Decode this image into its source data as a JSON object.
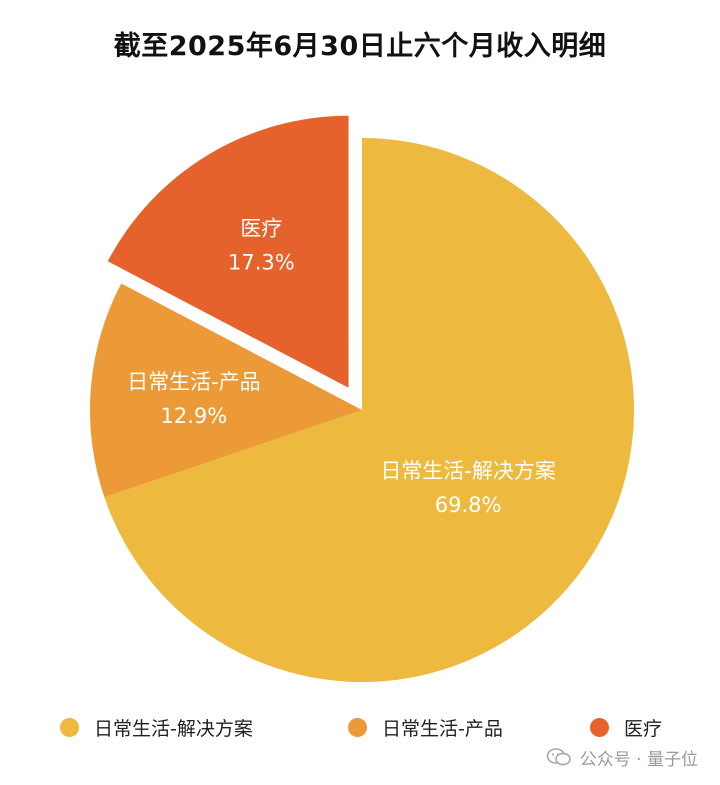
{
  "chart_data": {
    "type": "pie",
    "title": "截至2025年6月30日止六个月收入明细",
    "slices": [
      {
        "label": "日常生活-解决方案",
        "value": 69.8,
        "value_label": "69.8%",
        "color": "#EDB93E",
        "exploded": false
      },
      {
        "label": "日常生活-产品",
        "value": 12.9,
        "value_label": "12.9%",
        "color": "#EC9A37",
        "exploded": false
      },
      {
        "label": "医疗",
        "value": 17.3,
        "value_label": "17.3%",
        "color": "#E5622C",
        "exploded": true
      }
    ],
    "legend_position": "bottom"
  },
  "legend": {
    "items": [
      {
        "label": "日常生活-解决方案",
        "color": "#EDB93E"
      },
      {
        "label": "日常生活-产品",
        "color": "#EC9A37"
      },
      {
        "label": "医疗",
        "color": "#E5622C"
      }
    ]
  },
  "watermark": {
    "text": "公众号 · 量子位",
    "icon": "wechat-icon"
  }
}
